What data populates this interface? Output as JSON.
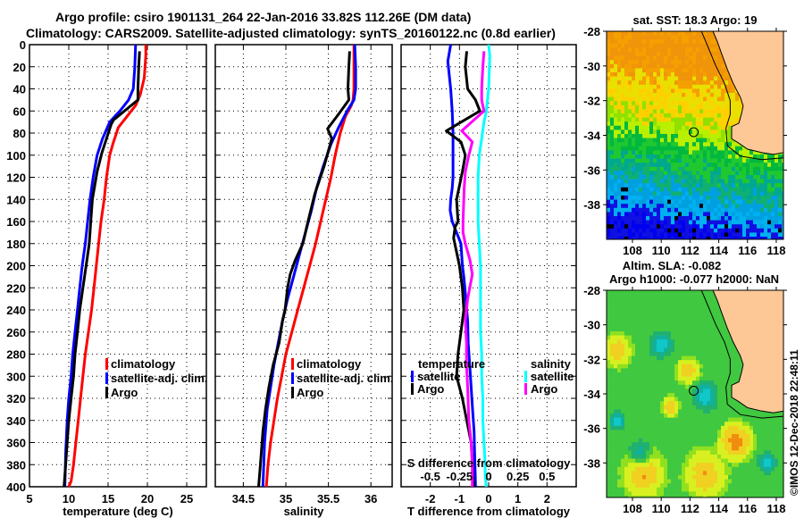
{
  "header": {
    "title_line1": "Argo profile: csiro 1901131_264 22-Jan-2016 33.82S 112.26E (DM data)",
    "title_line2": "Climatology: CARS2009. Satellite-adjusted climatology: synTS_20160122.nc (0.8d earlier)"
  },
  "colors": {
    "climatology": "#ff0000",
    "satellite": "#0000ff",
    "argo": "#000000",
    "sal_satellite": "#00ffff",
    "sal_argo": "#ff00ff",
    "land": "#fdc896"
  },
  "chart_data": [
    {
      "type": "line",
      "id": "temperature",
      "xlabel": "temperature (deg C)",
      "ylabel": "",
      "xlim": [
        5,
        27.5
      ],
      "ylim": [
        400,
        0
      ],
      "xticks": [
        5,
        10,
        15,
        20,
        25
      ],
      "yticks": [
        0,
        20,
        40,
        60,
        80,
        100,
        120,
        140,
        160,
        180,
        200,
        220,
        240,
        260,
        280,
        300,
        320,
        340,
        360,
        380,
        400
      ],
      "grid": true,
      "legend": {
        "placement": "right-middle",
        "entries": [
          "climatology",
          "satellite-adj. clim.",
          "Argo"
        ]
      },
      "series": [
        {
          "name": "climatology",
          "color": "#ff0000",
          "x": [
            19.8,
            19.8,
            19.6,
            19.1,
            18.5,
            17.4,
            16.3,
            15.6,
            15.2,
            14.8,
            14.5,
            14.1,
            13.8,
            13.5,
            13.2,
            12.9,
            12.5,
            12.1,
            11.8,
            11.5,
            11.2,
            10.9,
            10.6,
            10.3,
            10.0
          ],
          "y": [
            0,
            10,
            30,
            45,
            55,
            65,
            75,
            90,
            100,
            120,
            140,
            160,
            180,
            200,
            220,
            240,
            260,
            280,
            300,
            320,
            340,
            360,
            380,
            395,
            400
          ]
        },
        {
          "name": "satellite-adj. clim.",
          "color": "#0000ff",
          "x": [
            18.5,
            18.4,
            18.2,
            17.6,
            16.5,
            15.2,
            14.3,
            13.6,
            13.1,
            12.7,
            12.4,
            12.1,
            11.7,
            11.4,
            11.1,
            10.8,
            10.5,
            10.3,
            10.0,
            9.8,
            9.6,
            9.5
          ],
          "y": [
            0,
            20,
            40,
            50,
            60,
            70,
            85,
            100,
            120,
            140,
            160,
            180,
            200,
            220,
            240,
            260,
            280,
            300,
            320,
            340,
            370,
            400
          ]
        },
        {
          "name": "Argo",
          "color": "#000000",
          "x": [
            19.0,
            18.9,
            18.8,
            18.8,
            15.7,
            15.4,
            14.8,
            14.2,
            13.6,
            13.0,
            12.8,
            12.6,
            12.2,
            11.8,
            11.4,
            11.1,
            10.8,
            10.6,
            10.3,
            10.0,
            9.8,
            9.6,
            9.4
          ],
          "y": [
            6,
            20,
            40,
            50,
            68,
            72,
            85,
            98,
            115,
            140,
            160,
            180,
            200,
            220,
            240,
            260,
            280,
            300,
            320,
            340,
            360,
            380,
            400
          ]
        }
      ]
    },
    {
      "type": "line",
      "id": "salinity",
      "xlabel": "salinity",
      "ylabel": "",
      "xlim": [
        34.17,
        36.25
      ],
      "ylim": [
        400,
        0
      ],
      "xticks": [
        34.5,
        35,
        35.5,
        36
      ],
      "yticks": [
        0,
        20,
        40,
        60,
        80,
        100,
        120,
        140,
        160,
        180,
        200,
        220,
        240,
        260,
        280,
        300,
        320,
        340,
        360,
        380,
        400
      ],
      "grid": true,
      "legend": {
        "placement": "right-middle",
        "entries": [
          "climatology",
          "satellite-adj. clim.",
          "Argo"
        ]
      },
      "series": [
        {
          "name": "climatology",
          "color": "#ff0000",
          "x": [
            35.8,
            35.8,
            35.8,
            35.79,
            35.77,
            35.7,
            35.64,
            35.58,
            35.53,
            35.47,
            35.41,
            35.35,
            35.28,
            35.21,
            35.14,
            35.07,
            35.0,
            34.95,
            34.9,
            34.86,
            34.82,
            34.79,
            34.77
          ],
          "y": [
            0,
            20,
            40,
            50,
            55,
            65,
            80,
            100,
            120,
            140,
            160,
            180,
            200,
            220,
            240,
            260,
            280,
            300,
            320,
            340,
            360,
            380,
            400
          ]
        },
        {
          "name": "satellite-adj. clim.",
          "color": "#0000ff",
          "x": [
            35.81,
            35.82,
            35.82,
            35.8,
            35.72,
            35.62,
            35.53,
            35.44,
            35.36,
            35.3,
            35.23,
            35.16,
            35.09,
            35.02,
            34.96,
            34.91,
            34.86,
            34.82,
            34.78,
            34.75,
            34.73
          ],
          "y": [
            0,
            20,
            40,
            50,
            60,
            75,
            90,
            110,
            130,
            150,
            170,
            190,
            210,
            230,
            250,
            270,
            290,
            310,
            330,
            360,
            400
          ]
        },
        {
          "name": "Argo",
          "color": "#000000",
          "x": [
            35.75,
            35.74,
            35.73,
            35.74,
            35.6,
            35.49,
            35.54,
            35.45,
            35.34,
            35.26,
            35.2,
            35.11,
            35.05,
            35.02,
            34.99,
            34.96,
            34.92,
            34.85,
            34.8,
            34.76,
            34.73,
            34.7,
            34.68
          ],
          "y": [
            6,
            20,
            40,
            50,
            65,
            76,
            85,
            110,
            135,
            160,
            180,
            195,
            208,
            220,
            240,
            250,
            270,
            290,
            310,
            330,
            350,
            380,
            400
          ]
        }
      ]
    },
    {
      "type": "line",
      "id": "difference",
      "xlabel": "T difference from climatology",
      "x2label": "S difference from climatology",
      "xlim": [
        -3,
        3
      ],
      "x2lim": [
        -0.75,
        0.75
      ],
      "ylim": [
        400,
        0
      ],
      "xticks": [
        -2,
        -1,
        0,
        1,
        2
      ],
      "x2ticks": [
        -0.5,
        -0.25,
        0,
        0.25,
        0.5
      ],
      "yticks": [
        0,
        20,
        40,
        60,
        80,
        100,
        120,
        140,
        160,
        180,
        200,
        220,
        240,
        260,
        280,
        300,
        320,
        340,
        360,
        380,
        400
      ],
      "grid": true,
      "legend": {
        "placement": "bottom",
        "groups": [
          {
            "title": "temperature",
            "entries": [
              "satellite",
              "Argo"
            ]
          },
          {
            "title": "salinity",
            "entries": [
              "satellite",
              "Argo"
            ]
          }
        ]
      },
      "series": [
        {
          "name": "temperature satellite",
          "axis": "T",
          "color": "#0000ff",
          "x": [
            -1.3,
            -1.4,
            -1.3,
            -1.25,
            -1.22,
            -1.22,
            -1.22,
            -1.25,
            -1.3,
            -1.32,
            -1.25,
            -1.1,
            -0.95,
            -0.9,
            -0.85,
            -0.78,
            -0.72,
            -0.7,
            -0.65,
            -0.6,
            -0.55,
            -0.5,
            -0.48,
            -0.46,
            -0.45
          ],
          "y": [
            0,
            15,
            40,
            60,
            80,
            100,
            120,
            130,
            140,
            150,
            160,
            170,
            180,
            200,
            210,
            230,
            250,
            270,
            290,
            310,
            330,
            350,
            370,
            390,
            400
          ]
        },
        {
          "name": "temperature Argo",
          "axis": "T",
          "color": "#000000",
          "x": [
            -0.75,
            -0.8,
            -0.72,
            -0.45,
            -0.3,
            -1.45,
            -0.95,
            -0.8,
            -0.9,
            -1.1,
            -1.05,
            -1.15,
            -1.2,
            -1.0,
            -0.9,
            -0.85,
            -0.95,
            -1.05,
            -1.1,
            -0.9,
            -0.75,
            -0.6,
            -0.55,
            -0.55,
            -0.5
          ],
          "y": [
            6,
            20,
            40,
            50,
            60,
            78,
            88,
            100,
            115,
            140,
            160,
            165,
            175,
            200,
            220,
            240,
            260,
            280,
            300,
            320,
            340,
            360,
            380,
            390,
            400
          ]
        },
        {
          "name": "salinity satellite",
          "axis": "S",
          "color": "#00ffff",
          "x": [
            0.0,
            0.01,
            0.0,
            -0.02,
            -0.04,
            -0.06,
            -0.08,
            -0.09,
            -0.09,
            -0.09,
            -0.08,
            -0.07,
            -0.07,
            -0.07,
            -0.07,
            -0.06,
            -0.06,
            -0.05,
            -0.05,
            -0.04,
            -0.03,
            -0.03,
            -0.02
          ],
          "y": [
            0,
            10,
            40,
            60,
            70,
            85,
            100,
            120,
            140,
            160,
            180,
            200,
            220,
            240,
            260,
            280,
            300,
            320,
            340,
            360,
            380,
            390,
            400
          ]
        },
        {
          "name": "salinity Argo",
          "axis": "S",
          "color": "#ff00ff",
          "x": [
            -0.04,
            -0.05,
            -0.06,
            -0.06,
            -0.04,
            -0.23,
            -0.14,
            -0.17,
            -0.2,
            -0.21,
            -0.22,
            -0.22,
            -0.2,
            -0.16,
            -0.14,
            -0.18,
            -0.2,
            -0.19,
            -0.19,
            -0.18,
            -0.17,
            -0.15,
            -0.14,
            -0.14
          ],
          "y": [
            6,
            20,
            40,
            50,
            60,
            78,
            88,
            100,
            115,
            130,
            160,
            170,
            180,
            195,
            208,
            230,
            250,
            270,
            290,
            310,
            340,
            360,
            380,
            400
          ]
        }
      ]
    },
    {
      "type": "heatmap",
      "id": "sst-map",
      "title": "sat. SST: 18.3 Argo: 19",
      "xlim": [
        106.2,
        118.5
      ],
      "ylim": [
        -40,
        -28
      ],
      "xticks": [
        108,
        110,
        112,
        114,
        116,
        118
      ],
      "yticks": [
        -28,
        -30,
        -32,
        -34,
        -36,
        -38
      ],
      "marker": {
        "lon": 112.26,
        "lat": -33.82
      }
    },
    {
      "type": "heatmap",
      "id": "sla-map",
      "title": "Altim. SLA: -0.082",
      "subtitle": "Argo h1000: -0.077 h2000: NaN",
      "xlim": [
        106.2,
        118.5
      ],
      "ylim": [
        -40,
        -28
      ],
      "xticks": [
        108,
        110,
        112,
        114,
        116,
        118
      ],
      "yticks": [
        -28,
        -30,
        -32,
        -34,
        -36,
        -38
      ],
      "marker": {
        "lon": 112.26,
        "lat": -33.82
      }
    }
  ],
  "footer": {
    "copyright": "©IMOS 12-Dec-2018 22:48:11"
  }
}
